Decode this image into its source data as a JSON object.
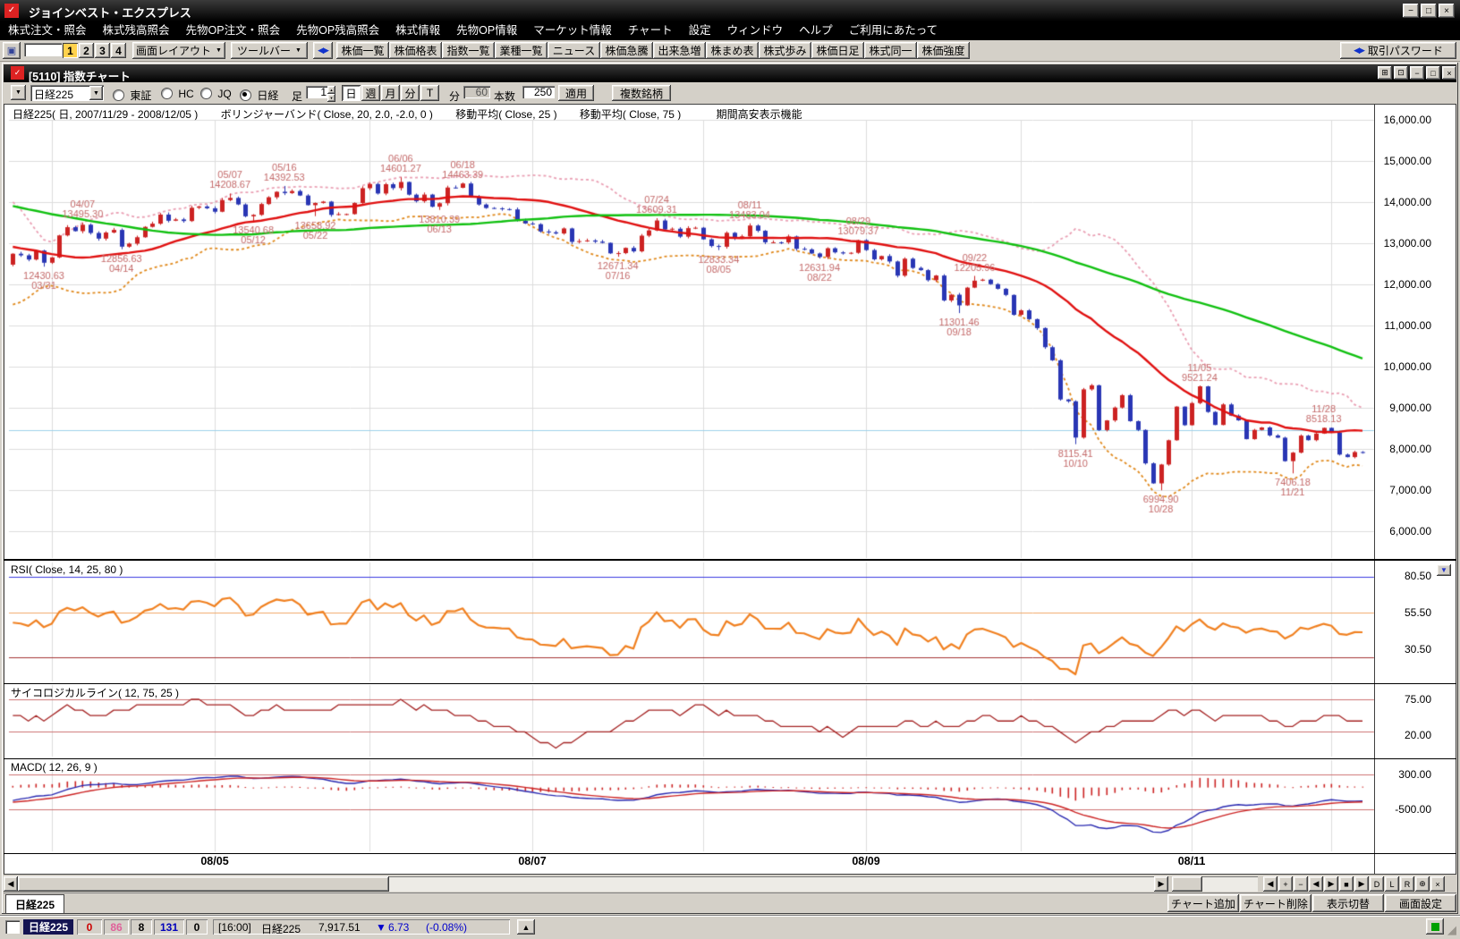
{
  "app": {
    "title": "ジョインベスト・エクスプレス"
  },
  "icons": {
    "app_icon": "✓",
    "minimize": "−",
    "restore": "□",
    "close": "×",
    "chart_btn_a": "⊞",
    "chart_btn_b": "⊡",
    "dropdown": "▼",
    "arrows": "◀▶",
    "windows": "▣",
    "spin_up": "▲",
    "spin_down": "▼",
    "scroll_left": "◀",
    "scroll_right": "▶",
    "up_arrow": "▲",
    "grip": "◢"
  },
  "menu": {
    "items": [
      "株式注文・照会",
      "株式残高照会",
      "先物OP注文・照会",
      "先物OP残高照会",
      "株式情報",
      "先物OP情報",
      "マーケット情報",
      "チャート",
      "設定",
      "ウィンドウ",
      "ヘルプ",
      "ご利用にあたって"
    ]
  },
  "toolbar": {
    "layout_numbers": [
      "1",
      "2",
      "3",
      "4"
    ],
    "screen_layout": "画面レイアウト",
    "toolbar_menu": "ツールバー",
    "buttons": [
      "株価一覧",
      "株価格表",
      "指数一覧",
      "業種一覧",
      "ニュース",
      "株価急騰",
      "出来急増",
      "株まめ表",
      "株式歩み",
      "株価日足",
      "株式同一",
      "株価強度"
    ],
    "trade_password": "取引パスワード"
  },
  "chart_window": {
    "title": "[5110] 指数チャート",
    "toolbar": {
      "symbol": "日経225",
      "markets": [
        "東証",
        "HC",
        "JQ",
        "日経"
      ],
      "selected_market": "日経",
      "ashi_label": "足",
      "ashi_value": "1",
      "periods": [
        "日",
        "週",
        "月",
        "分",
        "T"
      ],
      "active_period": "日",
      "minutes_label": "分",
      "minutes_value": "60",
      "bars_label": "本数",
      "bars_value": "250",
      "apply": "適用",
      "multi_symbol": "複数銘柄"
    },
    "header_segments": [
      "日経225( 日, 2007/11/29 - 2008/12/05 )",
      "ボリンジャーバンド( Close, 20, 2.0, -2.0, 0 )",
      "移動平均( Close, 25 )",
      "移動平均( Close, 75 )",
      "期間高安表示機能"
    ],
    "y_axis": [
      "16,000.00",
      "15,000.00",
      "14,000.00",
      "13,000.00",
      "12,000.00",
      "11,000.00",
      "10,000.00",
      "9,000.00",
      "8,000.00",
      "7,000.00",
      "6,000.00"
    ],
    "x_axis": [
      "08/05",
      "08/07",
      "08/09",
      "08/11"
    ],
    "rsi_label": "RSI( Close, 14, 25, 80 )",
    "rsi_axis": [
      "80.50",
      "55.50",
      "30.50"
    ],
    "psych_label": "サイコロジカルライン( 12, 75, 25 )",
    "psych_axis": [
      "75.00",
      "20.00"
    ],
    "macd_label": "MACD( 12, 26, 9 )",
    "macd_axis": [
      "300.00",
      "-500.00"
    ],
    "scroll_buttons": [
      "◀",
      "+",
      "−",
      "◀",
      "▶",
      "■",
      "▶",
      "D",
      "L",
      "R",
      "⊕",
      "×"
    ],
    "tab": "日経225",
    "bottom_buttons": [
      "チャート追加",
      "チャート削除",
      "表示切替",
      "画面設定"
    ]
  },
  "chart_data": {
    "type": "candlestick",
    "title": "日経225",
    "data_range": "2007/11/29 - 2008/12/05",
    "price_axis": {
      "min": 6000,
      "max": 16000,
      "step": 1000
    },
    "visible_bars": 175,
    "pre_closes": [
      15513,
      15681,
      15629,
      15480,
      15608,
      15674,
      15618,
      15750,
      15932,
      15854,
      15765,
      15514,
      15464,
      15030,
      15207,
      15257,
      15552,
      15564,
      15653,
      15307,
      15308,
      14691,
      14500,
      14528,
      14599,
      14388,
      14110,
      14057,
      13504,
      13783,
      13861,
      13325,
      12573,
      12829,
      13092,
      13629,
      13087,
      13478,
      13345,
      13592,
      13497,
      13859,
      13745,
      13207,
      13017,
      13021,
      13068,
      13622,
      13626,
      13688,
      13757,
      13622,
      13310,
      13500,
      13757,
      13510,
      13925,
      14031,
      13926,
      13603,
      12992,
      12532,
      12656,
      12782,
      12433,
      12532,
      12461,
      12861,
      12433,
      12241,
      11787,
      11964,
      12260,
      12482,
      12480
    ],
    "closes": [
      12745,
      12706,
      12604,
      12821,
      12526,
      12656,
      13190,
      13390,
      13294,
      13450,
      13250,
      13113,
      13260,
      13324,
      12917,
      12990,
      13146,
      13398,
      13476,
      13697,
      13547,
      13579,
      13540,
      13863,
      13894,
      13850,
      13766,
      14049,
      14102,
      13943,
      13655,
      13690,
      13953,
      14118,
      14251,
      14219,
      14269,
      14160,
      13926,
      13978,
      14012,
      13690,
      13708,
      13709,
      13978,
      14338,
      14440,
      14209,
      14435,
      14341,
      14489,
      14181,
      14021,
      14183,
      13888,
      13973,
      14354,
      14348,
      14452,
      14130,
      13942,
      13857,
      13849,
      13829,
      13822,
      13544,
      13481,
      13463,
      13286,
      13266,
      13237,
      13360,
      13033,
      13052,
      13067,
      13039,
      13010,
      12754,
      12760,
      12887,
      12803,
      13184,
      13312,
      13553,
      13335,
      13353,
      13160,
      13367,
      13377,
      13095,
      12933,
      12915,
      13254,
      13125,
      13168,
      13430,
      13303,
      13023,
      13023,
      13020,
      13165,
      12865,
      12851,
      12752,
      12666,
      12878,
      12778,
      12752,
      12768,
      13073,
      12834,
      12609,
      12689,
      12557,
      12212,
      12624,
      12400,
      12346,
      12102,
      12215,
      11610,
      11749,
      11490,
      11921,
      12090,
      12115,
      12006,
      11893,
      11743,
      11260,
      11368,
      11155,
      10938,
      10473,
      10155,
      9203,
      9158,
      8276,
      9448,
      9547,
      8458,
      8693,
      9006,
      9306,
      8675,
      8461,
      7649,
      7163,
      7621,
      8211,
      9029,
      8577,
      9115,
      9521,
      8899,
      8583,
      9081,
      8809,
      8695,
      8238,
      8462,
      8522,
      8328,
      8273,
      7703,
      7910,
      8323,
      8213,
      8373,
      8512,
      8397,
      7863,
      7802,
      7924,
      7917.51
    ],
    "month_start_indices": [
      5,
      26,
      46,
      67,
      89,
      110,
      130,
      152,
      170
    ],
    "x_label_indices": [
      26,
      67,
      110,
      152
    ],
    "reference_price": 8450,
    "indicators": {
      "bollinger": [
        20,
        2,
        -2,
        0
      ],
      "ma_short": 25,
      "ma_long": 75,
      "rsi": [
        14,
        25,
        80
      ],
      "psych": [
        12,
        75,
        25
      ],
      "macd": [
        12,
        26,
        9
      ]
    },
    "colors": {
      "up": "#cc2222",
      "down": "#2936b4",
      "ma25": "#e01010",
      "ma75": "#10c010",
      "bb_upper": "#eaa0b4",
      "bb_lower": "#e08a1e",
      "rsi": "#f08020",
      "rsi_hi_guide": "#3a3ae0",
      "rsi_mid_guide": "#f0a868",
      "rsi_lo_guide": "#a43434",
      "psych": "#a42222",
      "psych_guide": "#cc7070",
      "macd_line": "#2828b0",
      "macd_signal": "#cc2424",
      "macd_hist": "#cc2424",
      "macd_guide": "#cc7070",
      "annotation": "#c46a6a",
      "grid": "#dcdcdc",
      "ref_line": "#9ed2ea"
    },
    "annotations": [
      {
        "i": 4,
        "price": 12430.63,
        "type": "low",
        "lines": [
          "12430.63",
          "03/31"
        ]
      },
      {
        "i": 9,
        "price": 13495.3,
        "type": "high",
        "lines": [
          "04/07",
          "13495.30"
        ]
      },
      {
        "i": 14,
        "price": 12856.63,
        "type": "low",
        "lines": [
          "12856.63",
          "04/14"
        ]
      },
      {
        "i": 28,
        "price": 14208.67,
        "type": "high",
        "lines": [
          "05/07",
          "14208.67"
        ]
      },
      {
        "i": 31,
        "price": 13540.68,
        "type": "low",
        "lines": [
          "13540.68",
          "05/12"
        ]
      },
      {
        "i": 35,
        "price": 14392.53,
        "type": "high",
        "lines": [
          "05/16",
          "14392.53"
        ]
      },
      {
        "i": 39,
        "price": 13658.92,
        "type": "low",
        "lines": [
          "13658.92",
          "05/22"
        ]
      },
      {
        "i": 50,
        "price": 14601.27,
        "type": "high",
        "lines": [
          "06/06",
          "14601.27"
        ]
      },
      {
        "i": 55,
        "price": 13810.39,
        "type": "low",
        "lines": [
          "13810.39",
          "06/13"
        ]
      },
      {
        "i": 58,
        "price": 14463.39,
        "type": "high",
        "lines": [
          "06/18",
          "14463.39"
        ]
      },
      {
        "i": 78,
        "price": 12671.34,
        "type": "low",
        "lines": [
          "12671.34",
          "07/16"
        ]
      },
      {
        "i": 83,
        "price": 13609.31,
        "type": "high",
        "lines": [
          "07/24",
          "13609.31"
        ]
      },
      {
        "i": 91,
        "price": 12833.34,
        "type": "low",
        "lines": [
          "12833.34",
          "08/05"
        ]
      },
      {
        "i": 95,
        "price": 13483.04,
        "type": "high",
        "lines": [
          "08/11",
          "13483.04"
        ]
      },
      {
        "i": 104,
        "price": 12631.94,
        "type": "low",
        "lines": [
          "12631.94",
          "08/22"
        ]
      },
      {
        "i": 109,
        "price": 13079.37,
        "type": "high",
        "lines": [
          "08/29",
          "13079.37"
        ]
      },
      {
        "i": 122,
        "price": 11301.46,
        "type": "low",
        "lines": [
          "11301.46",
          "09/18"
        ]
      },
      {
        "i": 124,
        "price": 12205.96,
        "type": "high",
        "lines": [
          "09/22",
          "12205.96"
        ]
      },
      {
        "i": 137,
        "price": 8115.41,
        "type": "low",
        "lines": [
          "8115.41",
          "10/10"
        ]
      },
      {
        "i": 148,
        "price": 6994.9,
        "type": "low",
        "lines": [
          "6994.90",
          "10/28"
        ]
      },
      {
        "i": 153,
        "price": 9521.24,
        "type": "high",
        "lines": [
          "11/05",
          "9521.24"
        ]
      },
      {
        "i": 165,
        "price": 7406.18,
        "type": "low",
        "lines": [
          "7406.18",
          "11/21"
        ]
      },
      {
        "i": 169,
        "price": 8518.13,
        "type": "high",
        "lines": [
          "11/28",
          "8518.13"
        ]
      }
    ]
  },
  "status": {
    "symbol": "日経225",
    "counts": [
      {
        "value": "0",
        "color": "#cc0000"
      },
      {
        "value": "86",
        "color": "#e0609a"
      },
      {
        "value": "8",
        "color": "#000000"
      },
      {
        "value": "131",
        "color": "#0000bb"
      },
      {
        "value": "0",
        "color": "#000000"
      }
    ],
    "time": "[16:00]",
    "name": "日経225",
    "price": "7,917.51",
    "change_arrow": "▼",
    "change": "6.73",
    "change_pct": "(-0.08%)"
  }
}
